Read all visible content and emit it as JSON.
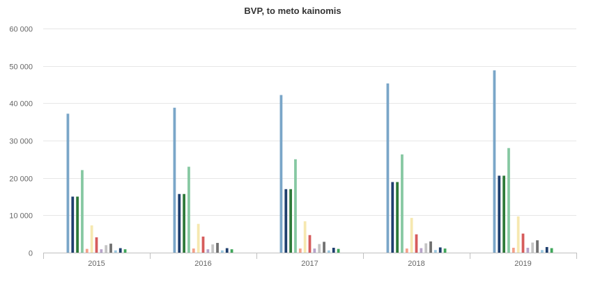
{
  "chart_data": {
    "type": "bar",
    "title": "BVP, to meto kainomis",
    "xlabel": "",
    "ylabel": "",
    "ylim": [
      0,
      60000
    ],
    "yticks": [
      0,
      10000,
      20000,
      30000,
      40000,
      50000,
      60000
    ],
    "ytick_labels": [
      "0",
      "10 000",
      "20 000",
      "30 000",
      "40 000",
      "50 000",
      "60 000"
    ],
    "categories": [
      "2015",
      "2016",
      "2017",
      "2018",
      "2019"
    ],
    "grid": true,
    "legend": "none",
    "series": [
      {
        "color": "#7aa6c8",
        "values": [
          37200,
          38800,
          42200,
          45300,
          48800
        ]
      },
      {
        "color": "#1f3f6e",
        "values": [
          15000,
          15700,
          17000,
          18900,
          20600
        ]
      },
      {
        "color": "#2e7a3a",
        "values": [
          15000,
          15700,
          17000,
          18900,
          20600
        ]
      },
      {
        "color": "#86c8a2",
        "values": [
          22100,
          23000,
          25000,
          26300,
          28000
        ]
      },
      {
        "color": "#f4a08a",
        "values": [
          1000,
          1100,
          1100,
          1100,
          1300
        ]
      },
      {
        "color": "#f6e8b0",
        "values": [
          7300,
          7700,
          8400,
          9300,
          9700
        ]
      },
      {
        "color": "#d65c5c",
        "values": [
          4100,
          4300,
          4700,
          4900,
          5100
        ]
      },
      {
        "color": "#b7a3c9",
        "values": [
          900,
          900,
          1100,
          1200,
          1300
        ]
      },
      {
        "color": "#c4c4c4",
        "values": [
          2000,
          2200,
          2300,
          2500,
          2700
        ]
      },
      {
        "color": "#707070",
        "values": [
          2400,
          2600,
          2900,
          3000,
          3300
        ]
      },
      {
        "color": "#9cc8e0",
        "values": [
          600,
          600,
          600,
          700,
          700
        ]
      },
      {
        "color": "#1f3f6e",
        "values": [
          1200,
          1200,
          1300,
          1400,
          1500
        ]
      },
      {
        "color": "#3fa65a",
        "values": [
          900,
          900,
          1000,
          1100,
          1200
        ]
      }
    ]
  }
}
